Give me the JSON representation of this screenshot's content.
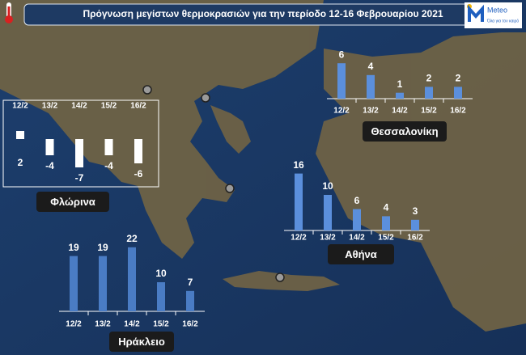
{
  "title": "Πρόγνωση μεγίστων θερμοκρασιών για την περίοδο 12-16 Φεβρουαρίου 2021",
  "logo": {
    "name": "Meteo",
    "tagline": "Όλα για τον καιρό"
  },
  "chart_data": [
    {
      "type": "bar",
      "title": "Θεσσαλονίκη",
      "categories": [
        "12/2",
        "13/2",
        "14/2",
        "15/2",
        "16/2"
      ],
      "values": [
        6,
        4,
        1,
        2,
        2
      ],
      "color": "#5b8fdc"
    },
    {
      "type": "bar",
      "title": "Φλώρινα",
      "categories": [
        "12/2",
        "13/2",
        "14/2",
        "15/2",
        "16/2"
      ],
      "values": [
        2,
        -4,
        -7,
        -4,
        -6
      ],
      "color": "#ffffff"
    },
    {
      "type": "bar",
      "title": "Αθήνα",
      "categories": [
        "12/2",
        "13/2",
        "14/2",
        "15/2",
        "16/2"
      ],
      "values": [
        16,
        10,
        6,
        4,
        3
      ],
      "color": "#5b8fdc"
    },
    {
      "type": "bar",
      "title": "Ηράκλειο",
      "categories": [
        "12/2",
        "13/2",
        "14/2",
        "15/2",
        "16/2"
      ],
      "values": [
        19,
        19,
        22,
        10,
        7
      ],
      "color": "#4a7cc4"
    }
  ]
}
